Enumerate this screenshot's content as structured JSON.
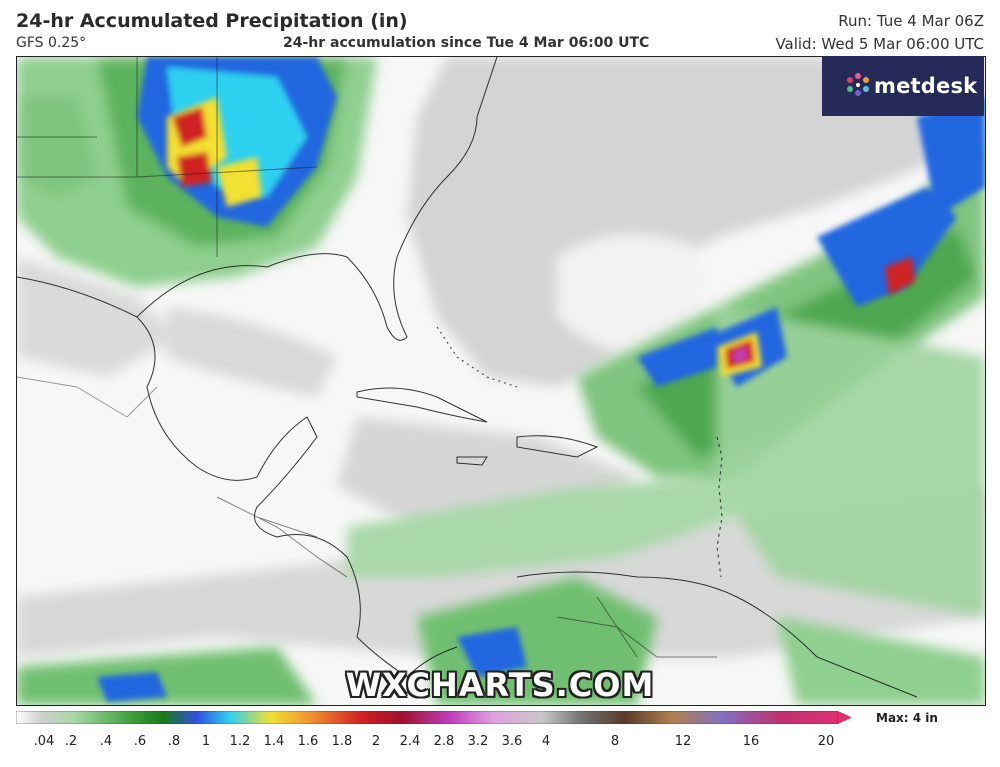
{
  "header": {
    "title": "24-hr Accumulated Precipitation (in)",
    "model": "GFS 0.25°",
    "subtitle": "24-hr accumulation since Tue 4 Mar 06:00 UTC",
    "run": "Run: Tue 4 Mar 06Z",
    "valid": "Valid: Wed 5 Mar 06:00 UTC"
  },
  "logo": {
    "text": "metdesk",
    "icon": "metdesk-flower-icon"
  },
  "watermark": "WXCHARTS.COM",
  "legend": {
    "max_label": "Max: 4 in",
    "ticks": [
      ".04",
      ".2",
      ".4",
      ".6",
      ".8",
      "1",
      "1.2",
      "1.4",
      "1.6",
      "1.8",
      "2",
      "2.4",
      "2.8",
      "3.2",
      "3.6",
      "4",
      "8",
      "12",
      "16",
      "20"
    ]
  },
  "colors": {
    "low_green": "#6fbf6f",
    "mid_blue": "#2166e0",
    "cyan": "#2fd0f0",
    "yellow": "#f2e030",
    "red": "#d02020",
    "magenta": "#c040c0",
    "trace_gray": "#c8c8c8",
    "logo_bg": "#262a58"
  }
}
